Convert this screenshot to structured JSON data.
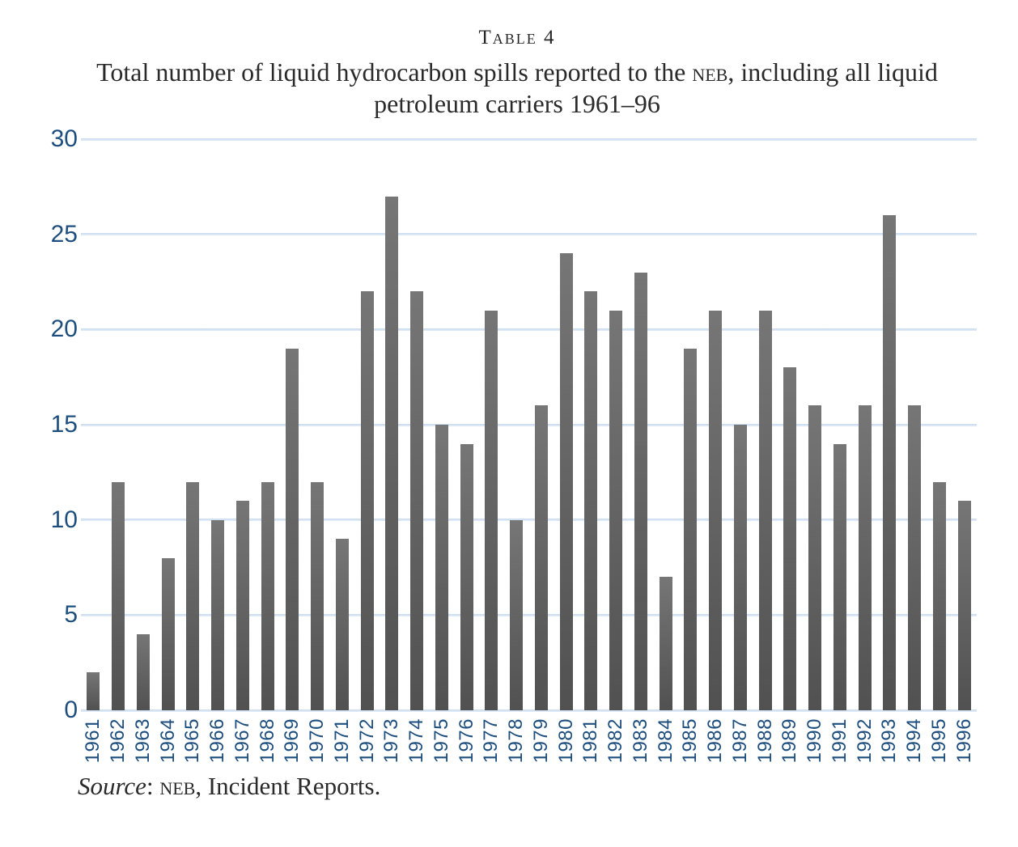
{
  "header": {
    "table_label": "Table 4",
    "title_line1_pre": "Total number of liquid hydrocarbon spills reported to the ",
    "title_neb": "neb",
    "title_line1_post": ", including all liquid",
    "title_line2": "petroleum carriers 1961–96"
  },
  "source": {
    "label_italic": "Source",
    "separator": ": ",
    "neb": "neb",
    "rest": ", Incident Reports."
  },
  "chart_data": {
    "type": "bar",
    "title": "Total number of liquid hydrocarbon spills reported to the NEB, including all liquid petroleum carriers 1961–96",
    "xlabel": "",
    "ylabel": "",
    "categories": [
      "1961",
      "1962",
      "1963",
      "1964",
      "1965",
      "1966",
      "1967",
      "1968",
      "1969",
      "1970",
      "1971",
      "1972",
      "1973",
      "1974",
      "1975",
      "1976",
      "1977",
      "1978",
      "1979",
      "1980",
      "1981",
      "1982",
      "1983",
      "1984",
      "1985",
      "1986",
      "1987",
      "1988",
      "1989",
      "1990",
      "1991",
      "1992",
      "1993",
      "1994",
      "1995",
      "1996"
    ],
    "values": [
      2,
      12,
      4,
      8,
      12,
      10,
      11,
      12,
      19,
      12,
      9,
      22,
      27,
      22,
      15,
      14,
      21,
      10,
      16,
      24,
      22,
      21,
      23,
      7,
      19,
      21,
      15,
      21,
      18,
      16,
      14,
      16,
      26,
      16,
      12,
      11
    ],
    "ylim": [
      0,
      30
    ],
    "yticks": [
      0,
      5,
      10,
      15,
      20,
      25,
      30
    ],
    "grid": true,
    "legend": "none",
    "bar_color_top": "#767676",
    "bar_color_bottom": "#515151",
    "axis_label_color": "#1d4e7e",
    "gridline_color": "#c7daef"
  }
}
